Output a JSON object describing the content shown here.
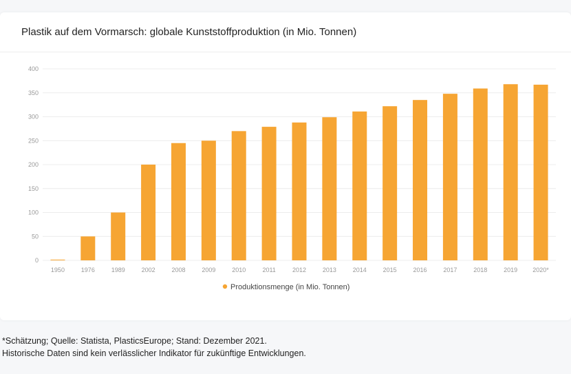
{
  "chart_data": {
    "type": "bar",
    "title": "Plastik auf dem Vormarsch: globale Kunststoffproduktion (in Mio. Tonnen)",
    "categories": [
      "1950",
      "1976",
      "1989",
      "2002",
      "2008",
      "2009",
      "2010",
      "2011",
      "2012",
      "2013",
      "2014",
      "2015",
      "2016",
      "2017",
      "2018",
      "2019",
      "2020*"
    ],
    "series": [
      {
        "name": "Produktionsmenge (in Mio. Tonnen)",
        "values": [
          1.5,
          50,
          100,
          200,
          245,
          250,
          270,
          279,
          288,
          299,
          311,
          322,
          335,
          348,
          359,
          368,
          367
        ],
        "color": "#f6a533"
      }
    ],
    "ylim": [
      0,
      400
    ],
    "yticks": [
      0,
      50,
      100,
      150,
      200,
      250,
      300,
      350,
      400
    ],
    "xlabel": "",
    "ylabel": "",
    "grid": true,
    "legend": "bottom-center"
  },
  "footnotes": {
    "line1": "*Schätzung; Quelle: Statista, PlasticsEurope; Stand: Dezember 2021.",
    "line2": "Historische Daten sind kein verlässlicher Indikator für zukünftige Entwicklungen."
  },
  "colors": {
    "bar": "#f6a533",
    "grid": "#ececec",
    "tick_text": "#999999"
  }
}
